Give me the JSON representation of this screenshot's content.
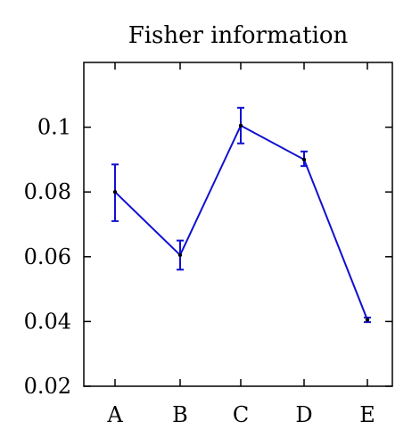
{
  "chart_data": {
    "type": "line",
    "title": "Fisher information",
    "xlabel": "",
    "ylabel": "",
    "categories": [
      "A",
      "B",
      "C",
      "D",
      "E"
    ],
    "series": [
      {
        "values": [
          0.08,
          0.0605,
          0.1005,
          0.09,
          0.0405
        ],
        "error_low": [
          0.071,
          0.056,
          0.095,
          0.088,
          0.0398
        ],
        "error_high": [
          0.0885,
          0.065,
          0.106,
          0.0925,
          0.0412
        ],
        "color": "#1010d0"
      }
    ],
    "ylim": [
      0.02,
      0.12
    ],
    "yticks": [
      0.02,
      0.04,
      0.06,
      0.08,
      0.1
    ],
    "ytick_labels": [
      "0.02",
      "0.04",
      "0.06",
      "0.08",
      "0.1"
    ],
    "grid": false,
    "legend": "none"
  }
}
